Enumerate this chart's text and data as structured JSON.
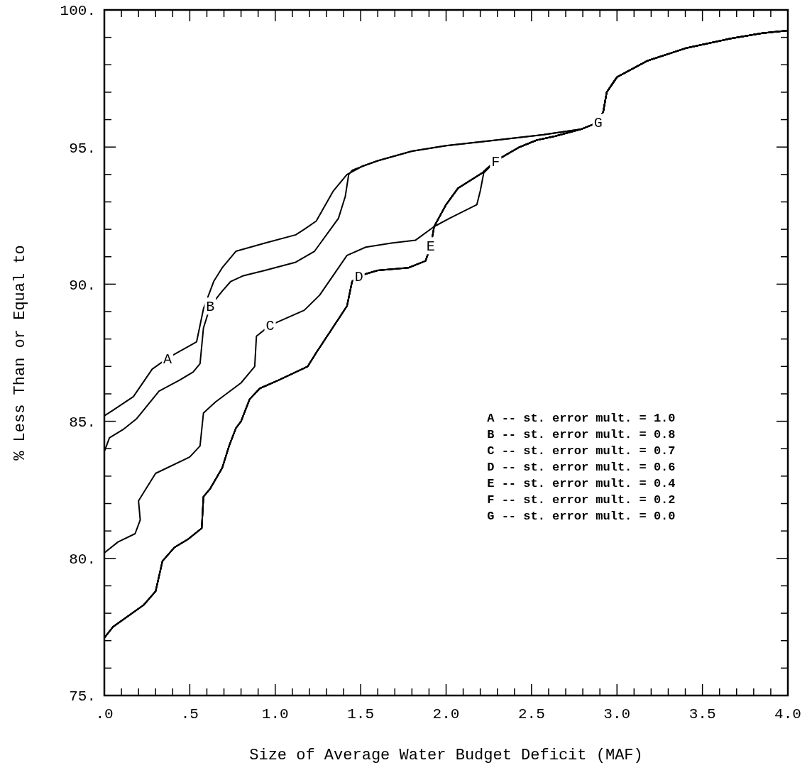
{
  "chart_data": {
    "type": "line",
    "xlabel": "Size of Average Water Budget Deficit (MAF)",
    "ylabel": "% Less Than or Equal to",
    "xlim": [
      0,
      4
    ],
    "ylim": [
      75,
      100
    ],
    "xticks": [
      {
        "value": 0,
        "label": ".0"
      },
      {
        "value": 0.1,
        "label": null
      },
      {
        "value": 0.2,
        "label": null
      },
      {
        "value": 0.3,
        "label": null
      },
      {
        "value": 0.4,
        "label": null
      },
      {
        "value": 0.5,
        "label": ".5"
      },
      {
        "value": 0.6,
        "label": null
      },
      {
        "value": 0.7,
        "label": null
      },
      {
        "value": 0.8,
        "label": null
      },
      {
        "value": 0.9,
        "label": null
      },
      {
        "value": 1,
        "label": "1.0"
      },
      {
        "value": 1.1,
        "label": null
      },
      {
        "value": 1.2,
        "label": null
      },
      {
        "value": 1.3,
        "label": null
      },
      {
        "value": 1.4,
        "label": null
      },
      {
        "value": 1.5,
        "label": "1.5"
      },
      {
        "value": 1.6,
        "label": null
      },
      {
        "value": 1.7,
        "label": null
      },
      {
        "value": 1.8,
        "label": null
      },
      {
        "value": 1.9,
        "label": null
      },
      {
        "value": 2,
        "label": "2.0"
      },
      {
        "value": 2.1,
        "label": null
      },
      {
        "value": 2.2,
        "label": null
      },
      {
        "value": 2.3,
        "label": null
      },
      {
        "value": 2.4,
        "label": null
      },
      {
        "value": 2.5,
        "label": "2.5"
      },
      {
        "value": 2.6,
        "label": null
      },
      {
        "value": 2.7,
        "label": null
      },
      {
        "value": 2.8,
        "label": null
      },
      {
        "value": 2.9,
        "label": null
      },
      {
        "value": 3,
        "label": "3.0"
      },
      {
        "value": 3.1,
        "label": null
      },
      {
        "value": 3.2,
        "label": null
      },
      {
        "value": 3.3,
        "label": null
      },
      {
        "value": 3.4,
        "label": null
      },
      {
        "value": 3.5,
        "label": "3.5"
      },
      {
        "value": 3.6,
        "label": null
      },
      {
        "value": 3.7,
        "label": null
      },
      {
        "value": 3.8,
        "label": null
      },
      {
        "value": 3.9,
        "label": null
      },
      {
        "value": 4,
        "label": "4.0"
      }
    ],
    "yticks": [
      {
        "value": 75,
        "label": "75."
      },
      {
        "value": 76,
        "label": null
      },
      {
        "value": 77,
        "label": null
      },
      {
        "value": 78,
        "label": null
      },
      {
        "value": 79,
        "label": null
      },
      {
        "value": 80,
        "label": "80."
      },
      {
        "value": 81,
        "label": null
      },
      {
        "value": 82,
        "label": null
      },
      {
        "value": 83,
        "label": null
      },
      {
        "value": 84,
        "label": null
      },
      {
        "value": 85,
        "label": "85."
      },
      {
        "value": 86,
        "label": null
      },
      {
        "value": 87,
        "label": null
      },
      {
        "value": 88,
        "label": null
      },
      {
        "value": 89,
        "label": null
      },
      {
        "value": 90,
        "label": "90."
      },
      {
        "value": 91,
        "label": null
      },
      {
        "value": 92,
        "label": null
      },
      {
        "value": 93,
        "label": null
      },
      {
        "value": 94,
        "label": null
      },
      {
        "value": 95,
        "label": "95."
      },
      {
        "value": 96,
        "label": null
      },
      {
        "value": 97,
        "label": null
      },
      {
        "value": 98,
        "label": null
      },
      {
        "value": 99,
        "label": null
      },
      {
        "value": 100,
        "label": "100."
      }
    ],
    "grid": false,
    "marker": "none",
    "line_style": "solid",
    "annotations": [
      "A -- st. error mult. = 1.0",
      "B -- st. error mult. = 0.8",
      "C -- st. error mult. = 0.7",
      "D -- st. error mult. = 0.6",
      "E -- st. error mult. = 0.4",
      "F -- st. error mult. = 0.2",
      "G -- st. error mult. = 0.0"
    ],
    "series": [
      {
        "name": "A",
        "color": "#000000",
        "x": [
          0,
          0.05,
          0.17,
          0.28,
          0.37,
          0.54,
          0.58,
          0.64,
          0.69,
          0.77,
          0.94,
          1.12,
          1.17,
          1.24,
          1.34,
          1.42,
          1.51,
          1.6,
          1.8,
          2.0,
          2.29,
          2.57,
          2.79,
          2.89,
          2.92,
          2.94,
          3.0,
          3.18,
          3.4,
          3.66,
          3.85,
          4.0
        ],
        "values": [
          85.2,
          85.4,
          85.9,
          86.9,
          87.3,
          87.9,
          89.1,
          90.1,
          90.6,
          91.2,
          91.5,
          91.8,
          92.0,
          92.3,
          93.4,
          94.0,
          94.3,
          94.5,
          94.85,
          95.05,
          95.25,
          95.45,
          95.65,
          95.9,
          96.3,
          97.0,
          97.55,
          98.15,
          98.6,
          98.95,
          99.15,
          99.25
        ]
      },
      {
        "name": "B",
        "color": "#000000",
        "x": [
          0,
          0.03,
          0.11,
          0.19,
          0.32,
          0.44,
          0.52,
          0.56,
          0.58,
          0.62,
          0.69,
          0.74,
          0.81,
          0.94,
          1.12,
          1.23,
          1.37,
          1.41,
          1.43,
          1.45,
          1.51,
          1.6,
          1.8,
          2.0,
          2.29,
          2.57,
          2.79,
          2.89,
          2.92,
          2.94,
          3.0,
          3.18,
          3.4,
          3.66,
          3.85,
          4.0
        ],
        "values": [
          83.9,
          84.4,
          84.7,
          85.1,
          86.1,
          86.5,
          86.8,
          87.1,
          88.4,
          89.2,
          89.75,
          90.1,
          90.3,
          90.5,
          90.8,
          91.2,
          92.4,
          93.2,
          94.0,
          94.15,
          94.3,
          94.5,
          94.85,
          95.05,
          95.25,
          95.45,
          95.65,
          95.9,
          96.3,
          97.0,
          97.55,
          98.15,
          98.6,
          98.95,
          99.15,
          99.25
        ]
      },
      {
        "name": "C",
        "color": "#000000",
        "x": [
          0,
          0.08,
          0.18,
          0.21,
          0.2,
          0.23,
          0.3,
          0.5,
          0.56,
          0.58,
          0.65,
          0.8,
          0.88,
          0.89,
          0.97,
          1.17,
          1.26,
          1.42,
          1.53,
          1.68,
          1.82,
          1.93,
          2.02,
          2.18,
          2.2,
          2.22,
          2.29,
          2.43,
          2.53,
          2.64,
          2.79,
          2.89,
          2.92,
          2.94,
          3.0,
          3.18,
          3.4,
          3.66,
          3.85,
          4.0
        ],
        "values": [
          80.2,
          80.6,
          80.9,
          81.4,
          82.1,
          82.4,
          83.1,
          83.7,
          84.1,
          85.3,
          85.7,
          86.4,
          87.0,
          88.1,
          88.5,
          89.05,
          89.6,
          91.05,
          91.35,
          91.5,
          91.6,
          92.1,
          92.4,
          92.9,
          93.4,
          94.05,
          94.5,
          95.0,
          95.25,
          95.4,
          95.65,
          95.9,
          96.3,
          97.0,
          97.55,
          98.15,
          98.6,
          98.95,
          99.15,
          99.25
        ]
      },
      {
        "name": "D",
        "color": "#000000",
        "x": [
          0,
          0.05,
          0.23,
          0.3,
          0.34,
          0.41,
          0.49,
          0.57,
          0.58,
          0.62,
          0.69,
          0.73,
          0.77,
          0.8,
          0.85,
          0.91,
          1.02,
          1.19,
          1.24,
          1.42,
          1.45,
          1.49,
          1.6,
          1.78,
          1.88,
          1.91,
          1.93,
          2.0,
          2.07,
          2.21,
          2.29,
          2.43,
          2.53,
          2.64,
          2.79,
          2.89,
          2.92,
          2.94,
          3.0,
          3.18,
          3.4,
          3.66,
          3.85,
          4.0
        ],
        "values": [
          77.1,
          77.5,
          78.3,
          78.8,
          79.9,
          80.4,
          80.7,
          81.1,
          82.25,
          82.55,
          83.3,
          84.1,
          84.75,
          85.0,
          85.8,
          86.2,
          86.5,
          87.0,
          87.5,
          89.2,
          90.1,
          90.3,
          90.5,
          90.6,
          90.85,
          91.4,
          92.1,
          92.9,
          93.5,
          94.05,
          94.5,
          95.0,
          95.25,
          95.4,
          95.65,
          95.9,
          96.3,
          97.0,
          97.55,
          98.15,
          98.6,
          98.95,
          99.15,
          99.25
        ]
      },
      {
        "name": "E",
        "color": "#000000",
        "x": [
          0,
          0.05,
          0.23,
          0.3,
          0.34,
          0.41,
          0.49,
          0.57,
          0.58,
          0.62,
          0.69,
          0.73,
          0.77,
          0.8,
          0.85,
          0.91,
          1.02,
          1.19,
          1.24,
          1.42,
          1.45,
          1.49,
          1.6,
          1.78,
          1.88,
          1.91,
          1.93,
          2.0,
          2.07,
          2.21,
          2.29,
          2.43,
          2.53,
          2.64,
          2.79,
          2.89,
          2.92,
          2.94,
          3.0,
          3.18,
          3.4,
          3.66,
          3.85,
          4.0
        ],
        "values": [
          77.1,
          77.5,
          78.3,
          78.8,
          79.9,
          80.4,
          80.7,
          81.1,
          82.25,
          82.55,
          83.3,
          84.1,
          84.75,
          85.0,
          85.8,
          86.2,
          86.5,
          87.0,
          87.5,
          89.2,
          90.1,
          90.3,
          90.5,
          90.6,
          90.85,
          91.4,
          92.1,
          92.9,
          93.5,
          94.05,
          94.5,
          95.0,
          95.25,
          95.4,
          95.65,
          95.9,
          96.3,
          97.0,
          97.55,
          98.15,
          98.6,
          98.95,
          99.15,
          99.25
        ]
      },
      {
        "name": "F",
        "color": "#000000",
        "x": [
          0,
          0.05,
          0.23,
          0.3,
          0.34,
          0.41,
          0.49,
          0.57,
          0.58,
          0.62,
          0.69,
          0.73,
          0.77,
          0.8,
          0.85,
          0.91,
          1.02,
          1.19,
          1.24,
          1.42,
          1.45,
          1.49,
          1.6,
          1.78,
          1.88,
          1.91,
          1.93,
          2.0,
          2.07,
          2.21,
          2.29,
          2.43,
          2.53,
          2.64,
          2.79,
          2.89,
          2.92,
          2.94,
          3.0,
          3.18,
          3.4,
          3.66,
          3.85,
          4.0
        ],
        "values": [
          77.1,
          77.5,
          78.3,
          78.8,
          79.9,
          80.4,
          80.7,
          81.1,
          82.25,
          82.55,
          83.3,
          84.1,
          84.75,
          85.0,
          85.8,
          86.2,
          86.5,
          87.0,
          87.5,
          89.2,
          90.1,
          90.3,
          90.5,
          90.6,
          90.85,
          91.4,
          92.1,
          92.9,
          93.5,
          94.05,
          94.5,
          95.0,
          95.25,
          95.4,
          95.65,
          95.9,
          96.3,
          97.0,
          97.55,
          98.15,
          98.6,
          98.95,
          99.15,
          99.25
        ]
      },
      {
        "name": "G",
        "color": "#000000",
        "x": [
          0,
          0.05,
          0.23,
          0.3,
          0.34,
          0.41,
          0.49,
          0.57,
          0.58,
          0.62,
          0.69,
          0.73,
          0.77,
          0.8,
          0.85,
          0.91,
          1.02,
          1.19,
          1.24,
          1.42,
          1.45,
          1.49,
          1.6,
          1.78,
          1.88,
          1.91,
          1.93,
          2.0,
          2.07,
          2.21,
          2.29,
          2.43,
          2.53,
          2.64,
          2.79,
          2.89,
          2.92,
          2.94,
          3.0,
          3.18,
          3.4,
          3.66,
          3.85,
          4.0
        ],
        "values": [
          77.1,
          77.5,
          78.3,
          78.8,
          79.9,
          80.4,
          80.7,
          81.1,
          82.25,
          82.55,
          83.3,
          84.1,
          84.75,
          85.0,
          85.8,
          86.2,
          86.5,
          87.0,
          87.5,
          89.2,
          90.1,
          90.3,
          90.5,
          90.6,
          90.85,
          91.4,
          92.1,
          92.9,
          93.5,
          94.05,
          94.5,
          95.0,
          95.25,
          95.4,
          95.65,
          95.9,
          96.3,
          97.0,
          97.55,
          98.15,
          98.6,
          98.95,
          99.15,
          99.25
        ]
      }
    ]
  }
}
